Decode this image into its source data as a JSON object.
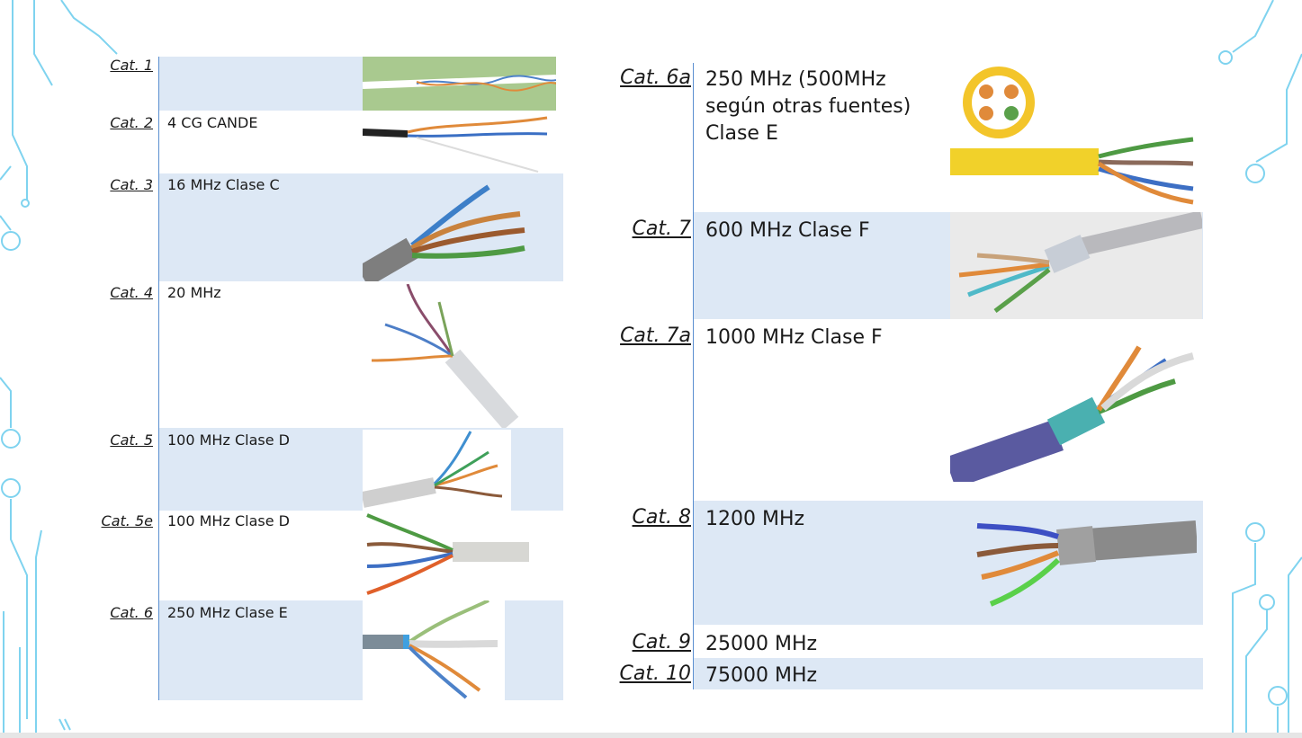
{
  "left_table": {
    "rows": [
      {
        "label": "Cat. 1",
        "value": ""
      },
      {
        "label": "Cat. 2",
        "value": "4 CG CANDE"
      },
      {
        "label": "Cat. 3",
        "value": "16 MHz Clase C"
      },
      {
        "label": "Cat. 4",
        "value": "20 MHz"
      },
      {
        "label": "Cat. 5",
        "value": "100 MHz Clase D"
      },
      {
        "label": "Cat. 5e",
        "value": "100 MHz Clase D"
      },
      {
        "label": "Cat. 6",
        "value": "250 MHz Clase E"
      }
    ]
  },
  "right_table": {
    "rows": [
      {
        "label": "Cat. 6a",
        "value": "250 MHz (500MHz según otras fuentes) Clase E"
      },
      {
        "label": "Cat. 7",
        "value": "600 MHz Clase F"
      },
      {
        "label": "Cat. 7a",
        "value": "1000 MHz Clase F"
      },
      {
        "label": "Cat. 8",
        "value": "1200 MHz"
      },
      {
        "label": "Cat. 9",
        "value": "25000 MHz"
      },
      {
        "label": "Cat. 10",
        "value": "75000 MHz"
      }
    ]
  },
  "colors": {
    "row_shade": "#dde8f5",
    "divider": "#5b8fd0",
    "circuit_lines": "#7fd3ef"
  },
  "icons": {
    "cable_photo": "cable-image"
  }
}
